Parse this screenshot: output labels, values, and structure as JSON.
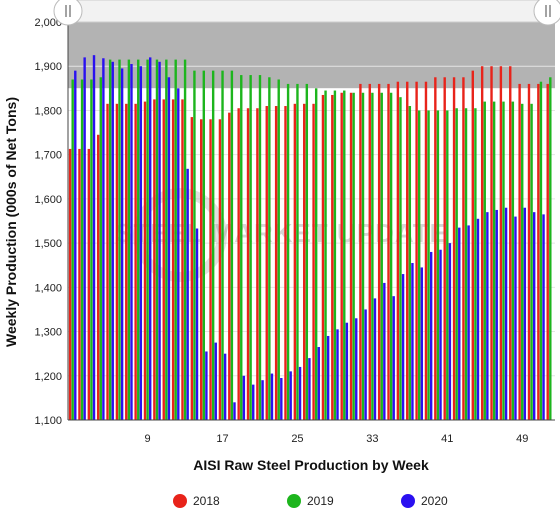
{
  "chart_data": {
    "type": "bar",
    "title": "",
    "xlabel": "AISI Raw Steel Production by Week",
    "ylabel": "Weekly Production (000s of Net Tons)",
    "ylim": [
      1100,
      2000
    ],
    "yticks": [
      1100,
      1200,
      1300,
      1400,
      1500,
      1600,
      1700,
      1800,
      1900,
      2000
    ],
    "xlim": [
      1,
      52
    ],
    "xticks": [
      9,
      17,
      25,
      33,
      41,
      49
    ],
    "grid": true,
    "legend_position": "bottom",
    "range_selector": true,
    "watermark": "STEEL MARKET UPDATE",
    "colors": {
      "2018": "#e8231a",
      "2019": "#1db51d",
      "2020": "#2a10f0",
      "selected_range_shade": "#b3b3b3"
    },
    "series": [
      {
        "name": "2018",
        "color": "#e8231a",
        "x": [
          1,
          2,
          3,
          4,
          5,
          6,
          7,
          8,
          9,
          10,
          11,
          12,
          13,
          14,
          15,
          16,
          17,
          18,
          19,
          20,
          21,
          22,
          23,
          24,
          25,
          26,
          27,
          28,
          29,
          30,
          31,
          32,
          33,
          34,
          35,
          36,
          37,
          38,
          39,
          40,
          41,
          42,
          43,
          44,
          45,
          46,
          47,
          48,
          49,
          50,
          51,
          52
        ],
        "values": [
          1713,
          1713,
          1713,
          1745,
          1815,
          1815,
          1815,
          1815,
          1820,
          1825,
          1825,
          1825,
          1825,
          1785,
          1780,
          1780,
          1780,
          1795,
          1805,
          1805,
          1805,
          1810,
          1810,
          1810,
          1815,
          1815,
          1815,
          1835,
          1835,
          1840,
          1840,
          1860,
          1860,
          1860,
          1860,
          1865,
          1865,
          1865,
          1865,
          1875,
          1875,
          1875,
          1875,
          1890,
          1900,
          1900,
          1900,
          1900,
          1860,
          1860,
          1860,
          1860
        ]
      },
      {
        "name": "2019",
        "color": "#1db51d",
        "x": [
          1,
          2,
          3,
          4,
          5,
          6,
          7,
          8,
          9,
          10,
          11,
          12,
          13,
          14,
          15,
          16,
          17,
          18,
          19,
          20,
          21,
          22,
          23,
          24,
          25,
          26,
          27,
          28,
          29,
          30,
          31,
          32,
          33,
          34,
          35,
          36,
          37,
          38,
          39,
          40,
          41,
          42,
          43,
          44,
          45,
          46,
          47,
          48,
          49,
          50,
          51,
          52
        ],
        "values": [
          1870,
          1870,
          1870,
          1875,
          1915,
          1915,
          1915,
          1915,
          1915,
          1915,
          1915,
          1915,
          1915,
          1890,
          1890,
          1890,
          1890,
          1890,
          1880,
          1880,
          1880,
          1875,
          1870,
          1860,
          1860,
          1860,
          1850,
          1845,
          1845,
          1845,
          1840,
          1840,
          1840,
          1840,
          1840,
          1830,
          1810,
          1800,
          1800,
          1800,
          1800,
          1805,
          1805,
          1805,
          1820,
          1820,
          1820,
          1820,
          1815,
          1815,
          1865,
          1875
        ]
      },
      {
        "name": "2020",
        "color": "#2a10f0",
        "x": [
          1,
          2,
          3,
          4,
          5,
          6,
          7,
          8,
          9,
          10,
          11,
          12,
          13,
          14,
          15,
          16,
          17,
          18,
          19,
          20,
          21,
          22,
          23,
          24,
          25,
          26,
          27,
          28,
          29,
          30,
          31,
          32,
          33,
          34,
          35,
          36,
          37,
          38,
          39,
          40,
          41,
          42,
          43,
          44,
          45,
          46,
          47,
          48,
          49,
          50,
          51
        ],
        "values": [
          1890,
          1920,
          1925,
          1918,
          1910,
          1895,
          1905,
          1900,
          1920,
          1910,
          1875,
          1850,
          1668,
          1533,
          1255,
          1275,
          1250,
          1140,
          1200,
          1180,
          1190,
          1205,
          1195,
          1210,
          1220,
          1240,
          1265,
          1290,
          1305,
          1320,
          1330,
          1350,
          1375,
          1410,
          1380,
          1430,
          1455,
          1445,
          1480,
          1485,
          1500,
          1535,
          1540,
          1555,
          1570,
          1575,
          1580,
          1560,
          1580,
          1570,
          1565
        ]
      }
    ]
  }
}
